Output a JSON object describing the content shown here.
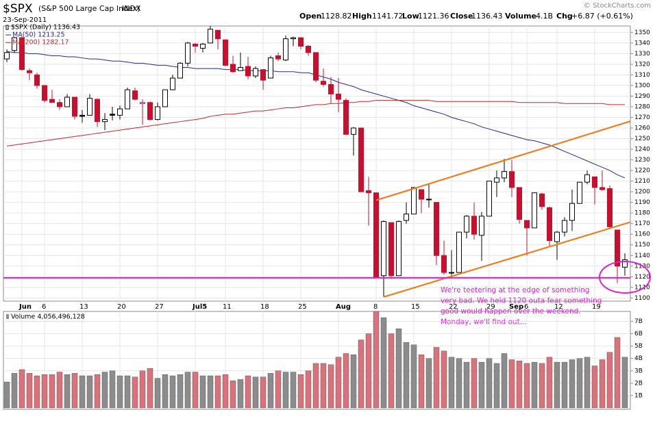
{
  "header": {
    "symbol": "$SPX",
    "name": "(S&P 500 Large Cap Index)",
    "exchange": "INDX",
    "date": "23-Sep-2011",
    "copyright": "© StockCharts.com",
    "quote": [
      {
        "label": "Open",
        "value": "1128.82"
      },
      {
        "label": "High",
        "value": "1141.72"
      },
      {
        "label": "Low",
        "value": "1121.36"
      },
      {
        "label": "Close",
        "value": "1136.43"
      },
      {
        "label": "Volume",
        "value": "4.1B"
      },
      {
        "label": "Chg",
        "value": "+6.87 (+0.61%)"
      }
    ]
  },
  "chart_data": [
    {
      "type": "candlestick",
      "legend": "$SPX (Daily) 1136.43",
      "up_color": "#000000",
      "down_color": "#c8102e",
      "categories": [
        null,
        null,
        "Jun",
        null,
        null,
        "6",
        null,
        null,
        null,
        null,
        "13",
        null,
        null,
        null,
        null,
        "20",
        null,
        null,
        null,
        null,
        "27",
        null,
        null,
        null,
        null,
        "Jul5",
        null,
        null,
        null,
        "11",
        null,
        null,
        null,
        null,
        "18",
        null,
        null,
        null,
        null,
        "25",
        null,
        null,
        null,
        null,
        "Aug",
        null,
        null,
        null,
        null,
        "8",
        null,
        null,
        null,
        null,
        "15",
        null,
        null,
        null,
        null,
        "22",
        null,
        null,
        null,
        null,
        "29",
        null,
        null,
        "Sep",
        null,
        "6",
        null,
        null,
        null,
        "12",
        null,
        null,
        null,
        null,
        "19",
        null,
        null,
        null,
        null
      ],
      "open": [
        1325,
        1333,
        1345,
        1314,
        1310,
        1300,
        1287,
        1284,
        1280,
        1289,
        1272,
        1272,
        1287,
        1266,
        1273,
        1272,
        1278,
        1295,
        1283,
        1284,
        1268,
        1280,
        1296,
        1307,
        1321,
        1339,
        1335,
        1340,
        1352,
        1343,
        1320,
        1314,
        1318,
        1309,
        1315,
        1307,
        1328,
        1324,
        1344,
        1345,
        1337,
        1331,
        1304,
        1301,
        1292,
        1286,
        1254,
        1260,
        1201,
        1199,
        1121,
        1171,
        1121,
        1173,
        1179,
        1202,
        1193,
        1190,
        1140,
        1124,
        1124,
        1162,
        1177,
        1159,
        1177,
        1209,
        1213,
        1219,
        1204,
        1173,
        1166,
        1198,
        1185,
        1153,
        1162,
        1173,
        1189,
        1209,
        1214,
        1204,
        1203,
        1164,
        1129
      ],
      "high": [
        1334,
        1346,
        1346,
        1316,
        1312,
        1300,
        1296,
        1287,
        1292,
        1289,
        1277,
        1292,
        1288,
        1274,
        1280,
        1281,
        1298,
        1298,
        1287,
        1285,
        1284,
        1296,
        1310,
        1322,
        1341,
        1340,
        1340,
        1356,
        1352,
        1343,
        1328,
        1331,
        1327,
        1318,
        1315,
        1328,
        1331,
        1347,
        1346,
        1345,
        1338,
        1331,
        1316,
        1308,
        1307,
        1288,
        1261,
        1260,
        1214,
        1199,
        1173,
        1171,
        1173,
        1190,
        1204,
        1202,
        1208,
        1190,
        1154,
        1145,
        1162,
        1178,
        1190,
        1181,
        1210,
        1220,
        1231,
        1230,
        1204,
        1173,
        1199,
        1199,
        1186,
        1163,
        1176,
        1202,
        1209,
        1220,
        1214,
        1220,
        1206,
        1164,
        1142
      ],
      "low": [
        1322,
        1331,
        1314,
        1305,
        1297,
        1284,
        1284,
        1277,
        1280,
        1268,
        1265,
        1272,
        1261,
        1258,
        1267,
        1268,
        1278,
        1286,
        1263,
        1267,
        1267,
        1280,
        1296,
        1307,
        1318,
        1331,
        1331,
        1340,
        1334,
        1318,
        1312,
        1314,
        1306,
        1307,
        1296,
        1307,
        1323,
        1323,
        1337,
        1334,
        1328,
        1303,
        1299,
        1283,
        1275,
        1254,
        1234,
        1200,
        1168,
        1119,
        1101,
        1118,
        1121,
        1170,
        1179,
        1180,
        1185,
        1131,
        1122,
        1121,
        1124,
        1156,
        1155,
        1135,
        1177,
        1195,
        1209,
        1195,
        1170,
        1140,
        1166,
        1183,
        1149,
        1136,
        1158,
        1163,
        1189,
        1207,
        1188,
        1201,
        1166,
        1114,
        1121
      ],
      "close": [
        1331,
        1345,
        1315,
        1312,
        1300,
        1286,
        1284,
        1280,
        1289,
        1271,
        1271,
        1288,
        1266,
        1268,
        1272,
        1278,
        1296,
        1287,
        1284,
        1268,
        1280,
        1296,
        1307,
        1321,
        1340,
        1337,
        1339,
        1353,
        1344,
        1319,
        1313,
        1317,
        1309,
        1316,
        1305,
        1326,
        1325,
        1344,
        1345,
        1337,
        1331,
        1305,
        1301,
        1292,
        1287,
        1254,
        1260,
        1200,
        1199,
        1119,
        1172,
        1121,
        1172,
        1179,
        1204,
        1193,
        1193,
        1140,
        1124,
        1124,
        1162,
        1177,
        1160,
        1177,
        1210,
        1213,
        1219,
        1204,
        1174,
        1166,
        1199,
        1186,
        1154,
        1162,
        1173,
        1189,
        1209,
        1216,
        1204,
        1202,
        1167,
        1130,
        1136
      ],
      "series": [
        {
          "name": "MA(50) 1213.25",
          "color": "#1f2a8a",
          "values": [
            1332,
            1331,
            1331,
            1330,
            1330,
            1329,
            1328,
            1328,
            1327,
            1327,
            1326,
            1325,
            1325,
            1324,
            1323,
            1323,
            1322,
            1321,
            1321,
            1320,
            1319,
            1319,
            1318,
            1317,
            1317,
            1316,
            1316,
            1316,
            1316,
            1315,
            1315,
            1315,
            1314,
            1314,
            1314,
            1314,
            1313,
            1313,
            1313,
            1312,
            1312,
            1310,
            1308,
            1306,
            1303,
            1301,
            1299,
            1296,
            1294,
            1292,
            1290,
            1288,
            1286,
            1284,
            1281,
            1279,
            1277,
            1275,
            1273,
            1270,
            1268,
            1266,
            1264,
            1261,
            1259,
            1257,
            1255,
            1253,
            1251,
            1249,
            1248,
            1246,
            1244,
            1241,
            1238,
            1235,
            1232,
            1229,
            1226,
            1223,
            1220,
            1216,
            1213
          ]
        },
        {
          "name": "MA(200) 1282.17",
          "color": "#c0272d",
          "values": [
            1243,
            1244,
            1245,
            1246,
            1247,
            1248,
            1249,
            1250,
            1251,
            1252,
            1253,
            1254,
            1255,
            1256,
            1257,
            1258,
            1259,
            1260,
            1261,
            1262,
            1263,
            1264,
            1265,
            1266,
            1267,
            1268,
            1269,
            1271,
            1272,
            1273,
            1273,
            1274,
            1275,
            1276,
            1276,
            1277,
            1278,
            1279,
            1279,
            1280,
            1281,
            1282,
            1282,
            1283,
            1283,
            1284,
            1284,
            1285,
            1285,
            1286,
            1286,
            1286,
            1286,
            1286,
            1286,
            1286,
            1286,
            1285,
            1285,
            1285,
            1285,
            1285,
            1285,
            1285,
            1285,
            1285,
            1285,
            1285,
            1284,
            1284,
            1284,
            1284,
            1284,
            1284,
            1283,
            1283,
            1283,
            1283,
            1283,
            1283,
            1282,
            1282,
            1282
          ]
        }
      ],
      "trendlines": [
        {
          "color": "#f07d1a",
          "x": [
            49,
            83
          ],
          "y": [
            1192,
            1267
          ]
        },
        {
          "color": "#f07d1a",
          "x": [
            50,
            83
          ],
          "y": [
            1101,
            1172
          ]
        }
      ],
      "hline": {
        "color": "#e020d0",
        "y": 1119
      },
      "annotation": {
        "color": "#e020d0",
        "lines": [
          "We're teetering at the edge of something",
          "very bad. We held 1120 outa fear something",
          "good would happen over the weekend.",
          "Monday, we'll find out..."
        ]
      },
      "ylim": [
        1097,
        1356
      ],
      "yticks": [
        1100,
        1110,
        1120,
        1130,
        1140,
        1150,
        1160,
        1170,
        1180,
        1190,
        1200,
        1210,
        1220,
        1230,
        1240,
        1250,
        1260,
        1270,
        1280,
        1290,
        1300,
        1310,
        1320,
        1330,
        1340,
        1350
      ],
      "grid": true
    },
    {
      "type": "bar",
      "legend": "Volume 4,056,496,128",
      "up_color": "#8c8c8c",
      "down_color": "#d9727a",
      "values": [
        2.1,
        2.8,
        3.1,
        2.8,
        2.6,
        2.7,
        2.7,
        2.9,
        2.7,
        2.8,
        2.6,
        2.6,
        2.7,
        2.9,
        3.0,
        2.6,
        2.6,
        2.5,
        3.0,
        3.2,
        2.4,
        2.7,
        2.6,
        2.7,
        2.9,
        2.9,
        2.6,
        2.6,
        2.6,
        2.7,
        2.2,
        2.3,
        2.6,
        2.5,
        2.5,
        2.8,
        3.0,
        2.9,
        2.9,
        2.7,
        3.0,
        3.6,
        3.6,
        3.5,
        4.1,
        4.4,
        4.3,
        5.5,
        6.0,
        7.8,
        7.3,
        6.0,
        6.4,
        5.3,
        5.1,
        4.3,
        4.0,
        4.9,
        4.6,
        4.1,
        4.0,
        3.7,
        4.0,
        3.7,
        4.0,
        3.6,
        4.4,
        3.9,
        3.8,
        3.6,
        3.7,
        3.6,
        4.1,
        3.7,
        3.7,
        3.9,
        4.0,
        4.1,
        3.4,
        3.9,
        4.5,
        5.7,
        4.1
      ],
      "ylim": [
        0,
        7.8
      ],
      "yticks": [
        {
          "value": 1,
          "label": "1B"
        },
        {
          "value": 2,
          "label": "2B"
        },
        {
          "value": 3,
          "label": "3B"
        },
        {
          "value": 4,
          "label": "4B"
        },
        {
          "value": 5,
          "label": "5B"
        },
        {
          "value": 6,
          "label": "6B"
        },
        {
          "value": 7,
          "label": "7B"
        }
      ],
      "grid": true
    }
  ]
}
